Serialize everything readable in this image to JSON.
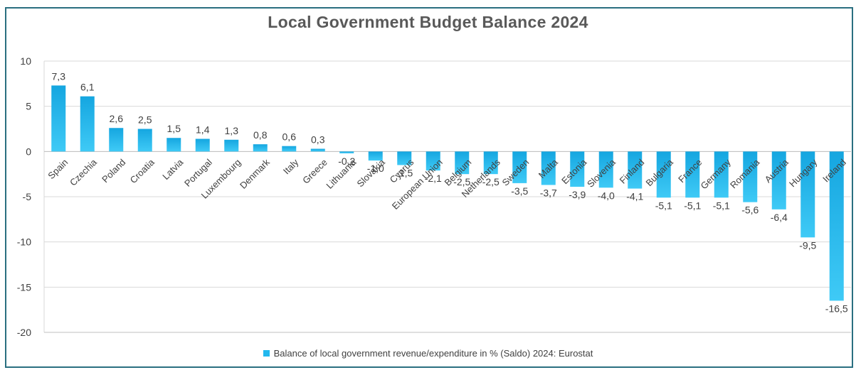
{
  "chart_data": {
    "type": "bar",
    "title": "Local Government Budget Balance 2024",
    "categories": [
      "Spain",
      "Czechia",
      "Poland",
      "Croatia",
      "Latvia",
      "Portugal",
      "Luxembourg",
      "Denmark",
      "Italy",
      "Greece",
      "Lithuania",
      "Slovakia",
      "Cyprus",
      "European Union",
      "Belgium",
      "Netherlands",
      "Sweden",
      "Malta",
      "Estonia",
      "Slovenia",
      "Finland",
      "Bulgaria",
      "France",
      "Germany",
      "Romania",
      "Austria",
      "Hungary",
      "Ireland"
    ],
    "series": [
      {
        "name": "Balance of local government revenue/expenditure in % (Saldo) 2024: Eurostat",
        "values": [
          7.3,
          6.1,
          2.6,
          2.5,
          1.5,
          1.4,
          1.3,
          0.8,
          0.6,
          0.3,
          -0.2,
          -1.0,
          -1.5,
          -2.1,
          -2.5,
          -2.5,
          -3.5,
          -3.7,
          -3.9,
          -4.0,
          -4.1,
          -5.1,
          -5.1,
          -5.1,
          -5.6,
          -6.4,
          -9.5,
          -16.5
        ],
        "labels": [
          "7,3",
          "6,1",
          "2,6",
          "2,5",
          "1,5",
          "1,4",
          "1,3",
          "0,8",
          "0,6",
          "0,3",
          "-0,2",
          "-1,0",
          "-1,5",
          "-2,1",
          "-2,5",
          "-2,5",
          "-3,5",
          "-3,7",
          "-3,9",
          "-4,0",
          "-4,1",
          "-5,1",
          "-5,1",
          "-5,1",
          "-5,6",
          "-6,4",
          "-9,5",
          "-16,5"
        ],
        "color": "#22b8ee"
      }
    ],
    "ylim": [
      -20,
      10
    ],
    "yticks": [
      10,
      5,
      0,
      -5,
      -10,
      -15,
      -20
    ],
    "grid": true,
    "legend_position": "bottom",
    "xlabel": "",
    "ylabel": ""
  }
}
